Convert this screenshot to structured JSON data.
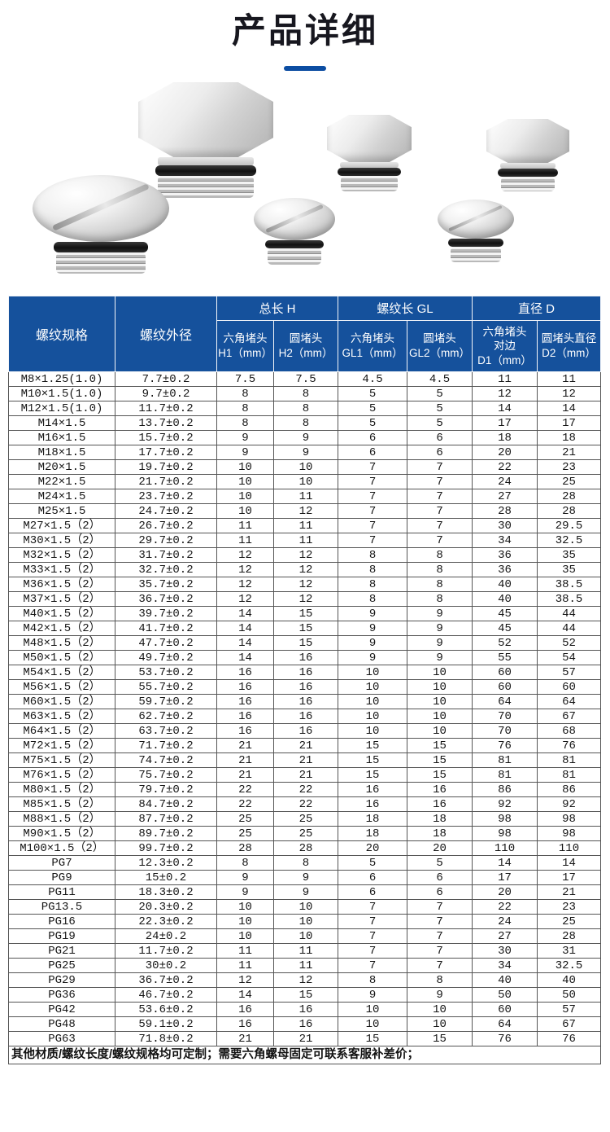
{
  "page": {
    "title": "产品详细"
  },
  "images": {
    "plugs": [
      "hex-plug-large",
      "hex-plug-medium",
      "hex-plug-small",
      "round-plug-large",
      "round-plug-medium",
      "round-plug-small"
    ]
  },
  "table": {
    "headers": {
      "spec": "螺纹规格",
      "outer": "螺纹外径",
      "group_h": "总长 H",
      "group_gl": "螺纹长 GL",
      "group_d": "直径 D",
      "sub_h1": "六角堵头\nH1（mm）",
      "sub_h2": "圆堵头\nH2（mm）",
      "sub_gl1": "六角堵头\nGL1（mm）",
      "sub_gl2": "圆堵头\nGL2（mm）",
      "sub_d1": "六角堵头\n对边\nD1（mm）",
      "sub_d2": "圆堵头直径\nD2（mm）"
    },
    "rows": [
      [
        "M8×1.25(1.0)",
        "7.7±0.2",
        "7.5",
        "7.5",
        "4.5",
        "4.5",
        "11",
        "11"
      ],
      [
        "M10×1.5(1.0)",
        "9.7±0.2",
        "8",
        "8",
        "5",
        "5",
        "12",
        "12"
      ],
      [
        "M12×1.5(1.0)",
        "11.7±0.2",
        "8",
        "8",
        "5",
        "5",
        "14",
        "14"
      ],
      [
        "M14×1.5",
        "13.7±0.2",
        "8",
        "8",
        "5",
        "5",
        "17",
        "17"
      ],
      [
        "M16×1.5",
        "15.7±0.2",
        "9",
        "9",
        "6",
        "6",
        "18",
        "18"
      ],
      [
        "M18×1.5",
        "17.7±0.2",
        "9",
        "9",
        "6",
        "6",
        "20",
        "21"
      ],
      [
        "M20×1.5",
        "19.7±0.2",
        "10",
        "10",
        "7",
        "7",
        "22",
        "23"
      ],
      [
        "M22×1.5",
        "21.7±0.2",
        "10",
        "10",
        "7",
        "7",
        "24",
        "25"
      ],
      [
        "M24×1.5",
        "23.7±0.2",
        "10",
        "11",
        "7",
        "7",
        "27",
        "28"
      ],
      [
        "M25×1.5",
        "24.7±0.2",
        "10",
        "12",
        "7",
        "7",
        "28",
        "28"
      ],
      [
        "M27×1.5（2）",
        "26.7±0.2",
        "11",
        "11",
        "7",
        "7",
        "30",
        "29.5"
      ],
      [
        "M30×1.5（2）",
        "29.7±0.2",
        "11",
        "11",
        "7",
        "7",
        "34",
        "32.5"
      ],
      [
        "M32×1.5（2）",
        "31.7±0.2",
        "12",
        "12",
        "8",
        "8",
        "36",
        "35"
      ],
      [
        "M33×1.5（2）",
        "32.7±0.2",
        "12",
        "12",
        "8",
        "8",
        "36",
        "35"
      ],
      [
        "M36×1.5（2）",
        "35.7±0.2",
        "12",
        "12",
        "8",
        "8",
        "40",
        "38.5"
      ],
      [
        "M37×1.5（2）",
        "36.7±0.2",
        "12",
        "12",
        "8",
        "8",
        "40",
        "38.5"
      ],
      [
        "M40×1.5（2）",
        "39.7±0.2",
        "14",
        "15",
        "9",
        "9",
        "45",
        "44"
      ],
      [
        "M42×1.5（2）",
        "41.7±0.2",
        "14",
        "15",
        "9",
        "9",
        "45",
        "44"
      ],
      [
        "M48×1.5（2）",
        "47.7±0.2",
        "14",
        "15",
        "9",
        "9",
        "52",
        "52"
      ],
      [
        "M50×1.5（2）",
        "49.7±0.2",
        "14",
        "16",
        "9",
        "9",
        "55",
        "54"
      ],
      [
        "M54×1.5（2）",
        "53.7±0.2",
        "16",
        "16",
        "10",
        "10",
        "60",
        "57"
      ],
      [
        "M56×1.5（2）",
        "55.7±0.2",
        "16",
        "16",
        "10",
        "10",
        "60",
        "60"
      ],
      [
        "M60×1.5（2）",
        "59.7±0.2",
        "16",
        "16",
        "10",
        "10",
        "64",
        "64"
      ],
      [
        "M63×1.5（2）",
        "62.7±0.2",
        "16",
        "16",
        "10",
        "10",
        "70",
        "67"
      ],
      [
        "M64×1.5（2）",
        "63.7±0.2",
        "16",
        "16",
        "10",
        "10",
        "70",
        "68"
      ],
      [
        "M72×1.5（2）",
        "71.7±0.2",
        "21",
        "21",
        "15",
        "15",
        "76",
        "76"
      ],
      [
        "M75×1.5（2）",
        "74.7±0.2",
        "21",
        "21",
        "15",
        "15",
        "81",
        "81"
      ],
      [
        "M76×1.5（2）",
        "75.7±0.2",
        "21",
        "21",
        "15",
        "15",
        "81",
        "81"
      ],
      [
        "M80×1.5（2）",
        "79.7±0.2",
        "22",
        "22",
        "16",
        "16",
        "86",
        "86"
      ],
      [
        "M85×1.5（2）",
        "84.7±0.2",
        "22",
        "22",
        "16",
        "16",
        "92",
        "92"
      ],
      [
        "M88×1.5（2）",
        "87.7±0.2",
        "25",
        "25",
        "18",
        "18",
        "98",
        "98"
      ],
      [
        "M90×1.5（2）",
        "89.7±0.2",
        "25",
        "25",
        "18",
        "18",
        "98",
        "98"
      ],
      [
        "M100×1.5（2）",
        "99.7±0.2",
        "28",
        "28",
        "20",
        "20",
        "110",
        "110"
      ],
      [
        "PG7",
        "12.3±0.2",
        "8",
        "8",
        "5",
        "5",
        "14",
        "14"
      ],
      [
        "PG9",
        "15±0.2",
        "9",
        "9",
        "6",
        "6",
        "17",
        "17"
      ],
      [
        "PG11",
        "18.3±0.2",
        "9",
        "9",
        "6",
        "6",
        "20",
        "21"
      ],
      [
        "PG13.5",
        "20.3±0.2",
        "10",
        "10",
        "7",
        "7",
        "22",
        "23"
      ],
      [
        "PG16",
        "22.3±0.2",
        "10",
        "10",
        "7",
        "7",
        "24",
        "25"
      ],
      [
        "PG19",
        "24±0.2",
        "10",
        "10",
        "7",
        "7",
        "27",
        "28"
      ],
      [
        "PG21",
        "11.7±0.2",
        "11",
        "11",
        "7",
        "7",
        "30",
        "31"
      ],
      [
        "PG25",
        "30±0.2",
        "11",
        "11",
        "7",
        "7",
        "34",
        "32.5"
      ],
      [
        "PG29",
        "36.7±0.2",
        "12",
        "12",
        "8",
        "8",
        "40",
        "40"
      ],
      [
        "PG36",
        "46.7±0.2",
        "14",
        "15",
        "9",
        "9",
        "50",
        "50"
      ],
      [
        "PG42",
        "53.6±0.2",
        "16",
        "16",
        "10",
        "10",
        "60",
        "57"
      ],
      [
        "PG48",
        "59.1±0.2",
        "16",
        "16",
        "10",
        "10",
        "64",
        "67"
      ],
      [
        "PG63",
        "71.8±0.2",
        "21",
        "21",
        "15",
        "15",
        "76",
        "76"
      ]
    ],
    "note": "其他材质/螺纹长度/螺纹规格均可定制；需要六角螺母固定可联系客服补差价；"
  }
}
